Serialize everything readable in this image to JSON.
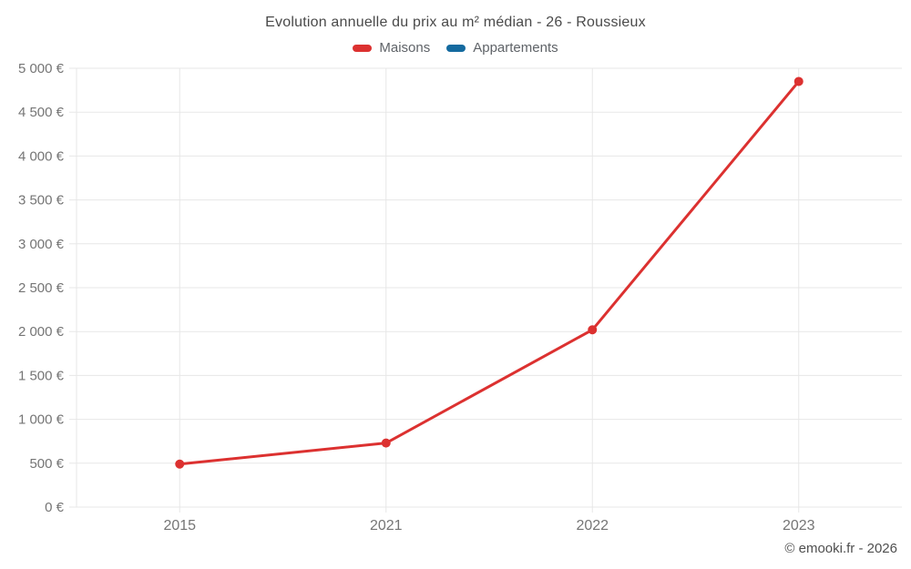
{
  "chart_data": {
    "type": "line",
    "title": "Evolution annuelle du prix au m² médian - 26 - Roussieux",
    "categories": [
      "2015",
      "2021",
      "2022",
      "2023"
    ],
    "series": [
      {
        "name": "Maisons",
        "color": "#dc3130",
        "values": [
          490,
          730,
          2020,
          4850
        ]
      },
      {
        "name": "Appartements",
        "color": "#146a9f",
        "values": []
      }
    ],
    "xlabel": "",
    "ylabel": "",
    "ylim": [
      0,
      5000
    ],
    "ytick_values": [
      0,
      500,
      1000,
      1500,
      2000,
      2500,
      3000,
      3500,
      4000,
      4500,
      5000
    ],
    "ytick_labels": [
      "0 €",
      "500 €",
      "1 000 €",
      "1 500 €",
      "2 000 €",
      "2 500 €",
      "3 000 €",
      "3 500 €",
      "4 000 €",
      "4 500 €",
      "5 000 €"
    ],
    "grid": true,
    "grid_color": "#e7e7e7",
    "axis_text_color": "#757575",
    "legend_position": "top",
    "point_radius": 5,
    "line_width": 3
  },
  "footer": {
    "copyright": "© emooki.fr - 2026"
  }
}
